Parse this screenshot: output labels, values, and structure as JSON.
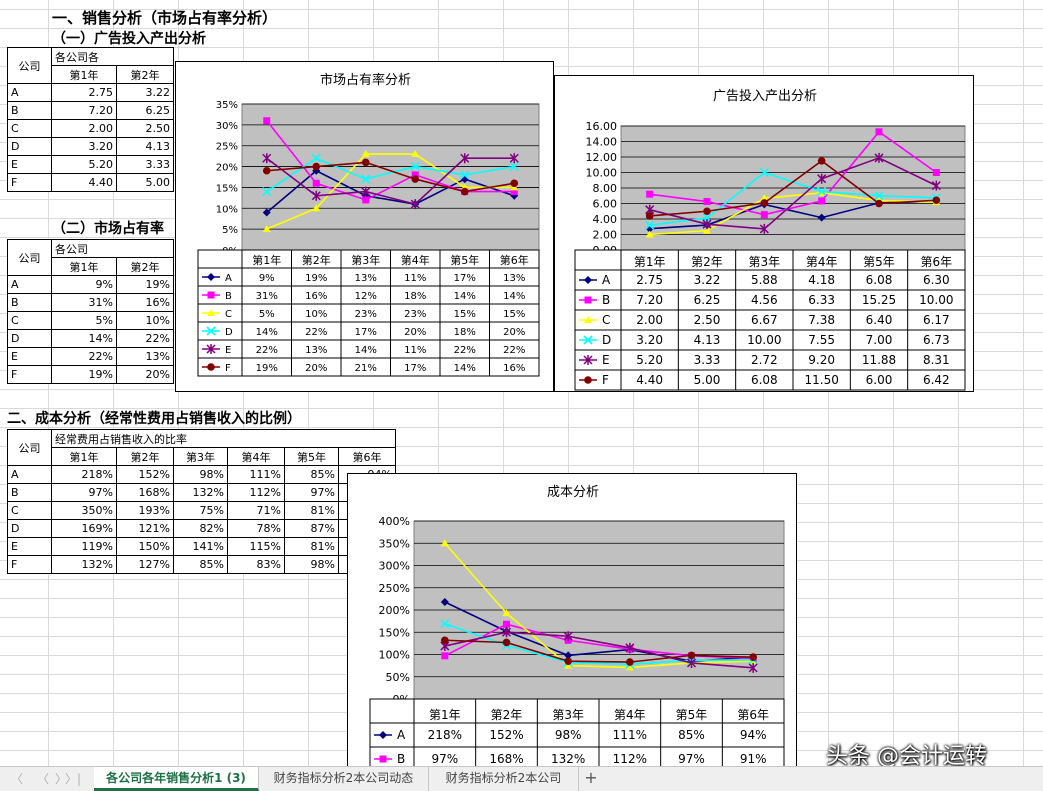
{
  "headings": {
    "sales": "一、销售分析（市场占有率分析）",
    "ad": "（一）广告投入产出分析",
    "market": "（二）市场占有率",
    "cost": "二、成本分析（经常性费用占销售收入的比例）"
  },
  "tables": {
    "ad": {
      "corner": "公司",
      "title": "各公司各",
      "cols": [
        "第1年",
        "第2年"
      ],
      "rows": [
        {
          "name": "A",
          "cells": [
            "2.75",
            "3.22"
          ]
        },
        {
          "name": "B",
          "cells": [
            "7.20",
            "6.25"
          ]
        },
        {
          "name": "C",
          "cells": [
            "2.00",
            "2.50"
          ]
        },
        {
          "name": "D",
          "cells": [
            "3.20",
            "4.13"
          ]
        },
        {
          "name": "E",
          "cells": [
            "5.20",
            "3.33"
          ]
        },
        {
          "name": "F",
          "cells": [
            "4.40",
            "5.00"
          ]
        }
      ]
    },
    "market": {
      "corner": "公司",
      "title": "各公司",
      "cols": [
        "第1年",
        "第2年"
      ],
      "rows": [
        {
          "name": "A",
          "cells": [
            "9%",
            "19%"
          ]
        },
        {
          "name": "B",
          "cells": [
            "31%",
            "16%"
          ]
        },
        {
          "name": "C",
          "cells": [
            "5%",
            "10%"
          ]
        },
        {
          "name": "D",
          "cells": [
            "14%",
            "22%"
          ]
        },
        {
          "name": "E",
          "cells": [
            "22%",
            "13%"
          ]
        },
        {
          "name": "F",
          "cells": [
            "19%",
            "20%"
          ]
        }
      ]
    },
    "cost": {
      "corner": "公司",
      "title": "经常费用占销售收入的比率",
      "cols": [
        "第1年",
        "第2年",
        "第3年",
        "第4年",
        "第5年",
        "第6年"
      ],
      "rows": [
        {
          "name": "A",
          "cells": [
            "218%",
            "152%",
            "98%",
            "111%",
            "85%",
            "94%"
          ]
        },
        {
          "name": "B",
          "cells": [
            "97%",
            "168%",
            "132%",
            "112%",
            "97%",
            "91%"
          ]
        },
        {
          "name": "C",
          "cells": [
            "350%",
            "193%",
            "75%",
            "71%",
            "81%",
            ""
          ]
        },
        {
          "name": "D",
          "cells": [
            "169%",
            "121%",
            "82%",
            "78%",
            "87%",
            ""
          ]
        },
        {
          "name": "E",
          "cells": [
            "119%",
            "150%",
            "141%",
            "115%",
            "81%",
            ""
          ]
        },
        {
          "name": "F",
          "cells": [
            "132%",
            "127%",
            "85%",
            "83%",
            "98%",
            ""
          ]
        }
      ]
    }
  },
  "chart_data": [
    {
      "id": "market",
      "type": "line",
      "title": "市场占有率分析",
      "categories": [
        "第1年",
        "第2年",
        "第3年",
        "第4年",
        "第5年",
        "第6年"
      ],
      "ylim": [
        0,
        35
      ],
      "yticks": [
        "0%",
        "5%",
        "10%",
        "15%",
        "20%",
        "25%",
        "30%",
        "35%"
      ],
      "series": [
        {
          "name": "A",
          "color": "#000080",
          "marker": "diamond",
          "values": [
            9,
            19,
            13,
            11,
            17,
            13
          ],
          "labels": [
            "9%",
            "19%",
            "13%",
            "11%",
            "17%",
            "13%"
          ]
        },
        {
          "name": "B",
          "color": "#ff00ff",
          "marker": "square",
          "values": [
            31,
            16,
            12,
            18,
            14,
            14
          ],
          "labels": [
            "31%",
            "16%",
            "12%",
            "18%",
            "14%",
            "14%"
          ]
        },
        {
          "name": "C",
          "color": "#ffff00",
          "marker": "triangle",
          "values": [
            5,
            10,
            23,
            23,
            15,
            15
          ],
          "labels": [
            "5%",
            "10%",
            "23%",
            "23%",
            "15%",
            "15%"
          ]
        },
        {
          "name": "D",
          "color": "#00ffff",
          "marker": "x",
          "values": [
            14,
            22,
            17,
            20,
            18,
            20
          ],
          "labels": [
            "14%",
            "22%",
            "17%",
            "20%",
            "18%",
            "20%"
          ]
        },
        {
          "name": "E",
          "color": "#800080",
          "marker": "star",
          "values": [
            22,
            13,
            14,
            11,
            22,
            22
          ],
          "labels": [
            "22%",
            "13%",
            "14%",
            "11%",
            "22%",
            "22%"
          ]
        },
        {
          "name": "F",
          "color": "#800000",
          "marker": "circle",
          "values": [
            19,
            20,
            21,
            17,
            14,
            16
          ],
          "labels": [
            "19%",
            "20%",
            "21%",
            "17%",
            "14%",
            "16%"
          ]
        }
      ]
    },
    {
      "id": "ad",
      "type": "line",
      "title": "广告投入产出分析",
      "categories": [
        "第1年",
        "第2年",
        "第3年",
        "第4年",
        "第5年",
        "第6年"
      ],
      "ylim": [
        0,
        16
      ],
      "yticks": [
        "0.00",
        "2.00",
        "4.00",
        "6.00",
        "8.00",
        "10.00",
        "12.00",
        "14.00",
        "16.00"
      ],
      "series": [
        {
          "name": "A",
          "color": "#000080",
          "marker": "diamond",
          "values": [
            2.75,
            3.22,
            5.88,
            4.18,
            6.08,
            6.3
          ],
          "labels": [
            "2.75",
            "3.22",
            "5.88",
            "4.18",
            "6.08",
            "6.30"
          ]
        },
        {
          "name": "B",
          "color": "#ff00ff",
          "marker": "square",
          "values": [
            7.2,
            6.25,
            4.56,
            6.33,
            15.25,
            10.0
          ],
          "labels": [
            "7.20",
            "6.25",
            "4.56",
            "6.33",
            "15.25",
            "10.00"
          ]
        },
        {
          "name": "C",
          "color": "#ffff00",
          "marker": "triangle",
          "values": [
            2.0,
            2.5,
            6.67,
            7.38,
            6.4,
            6.17
          ],
          "labels": [
            "2.00",
            "2.50",
            "6.67",
            "7.38",
            "6.40",
            "6.17"
          ]
        },
        {
          "name": "D",
          "color": "#00ffff",
          "marker": "x",
          "values": [
            3.2,
            4.13,
            10.0,
            7.55,
            7.0,
            6.73
          ],
          "labels": [
            "3.20",
            "4.13",
            "10.00",
            "7.55",
            "7.00",
            "6.73"
          ]
        },
        {
          "name": "E",
          "color": "#800080",
          "marker": "star",
          "values": [
            5.2,
            3.33,
            2.72,
            9.2,
            11.88,
            8.31
          ],
          "labels": [
            "5.20",
            "3.33",
            "2.72",
            "9.20",
            "11.88",
            "8.31"
          ]
        },
        {
          "name": "F",
          "color": "#800000",
          "marker": "circle",
          "values": [
            4.4,
            5.0,
            6.08,
            11.5,
            6.0,
            6.42
          ],
          "labels": [
            "4.40",
            "5.00",
            "6.08",
            "11.50",
            "6.00",
            "6.42"
          ]
        }
      ]
    },
    {
      "id": "cost",
      "type": "line",
      "title": "成本分析",
      "categories": [
        "第1年",
        "第2年",
        "第3年",
        "第4年",
        "第5年",
        "第6年"
      ],
      "ylim": [
        0,
        400
      ],
      "yticks": [
        "0%",
        "50%",
        "100%",
        "150%",
        "200%",
        "250%",
        "300%",
        "350%",
        "400%"
      ],
      "table_series": [
        "A",
        "B"
      ],
      "series": [
        {
          "name": "A",
          "color": "#000080",
          "marker": "diamond",
          "values": [
            218,
            152,
            98,
            111,
            85,
            94
          ],
          "labels": [
            "218%",
            "152%",
            "98%",
            "111%",
            "85%",
            "94%"
          ]
        },
        {
          "name": "B",
          "color": "#ff00ff",
          "marker": "square",
          "values": [
            97,
            168,
            132,
            112,
            97,
            91
          ],
          "labels": [
            "97%",
            "168%",
            "132%",
            "112%",
            "97%",
            "91%"
          ]
        },
        {
          "name": "C",
          "color": "#ffff00",
          "marker": "triangle",
          "values": [
            350,
            193,
            75,
            71,
            81,
            85
          ]
        },
        {
          "name": "D",
          "color": "#00ffff",
          "marker": "x",
          "values": [
            169,
            121,
            82,
            78,
            87,
            88
          ]
        },
        {
          "name": "E",
          "color": "#800080",
          "marker": "star",
          "values": [
            119,
            150,
            141,
            115,
            81,
            70
          ]
        },
        {
          "name": "F",
          "color": "#800000",
          "marker": "circle",
          "values": [
            132,
            127,
            85,
            83,
            98,
            94
          ]
        }
      ]
    }
  ],
  "sheet_tabs": {
    "tabs": [
      "各公司各年销售分析1 (3)",
      "财务指标分析2本公司动态",
      "财务指标分析2本公司"
    ],
    "active_index": 0,
    "add_icon": "plus-icon",
    "add_label": "+",
    "nav_icons": [
      "first-sheet-icon",
      "prev-sheet-icon",
      "next-sheet-icon",
      "last-sheet-icon"
    ],
    "nav_glyphs": [
      "〈",
      "〈",
      "〉",
      "〉|"
    ]
  },
  "watermark": "头条 @会计运转"
}
